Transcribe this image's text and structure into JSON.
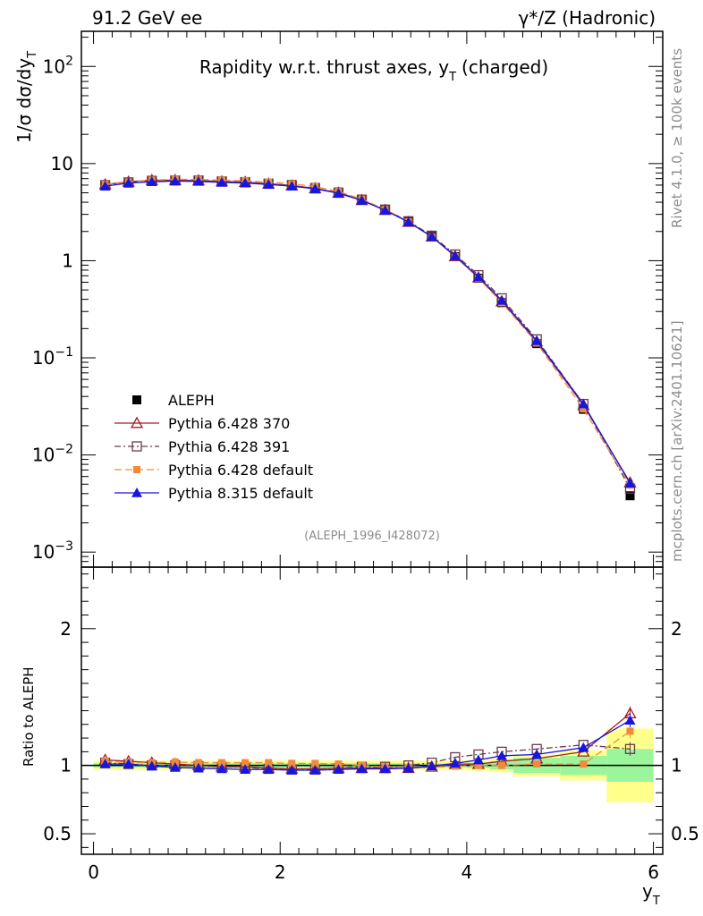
{
  "header": {
    "left": "91.2 GeV ee",
    "right": "γ*/Z (Hadronic)"
  },
  "side": {
    "rivet": "Rivet 4.1.0, ≥ 100k events",
    "mcplots": "mcplots.cern.ch [arXiv:2401.10621]"
  },
  "chart_data": {
    "type": "line",
    "title": "Rapidity w.r.t. thrust axes, y",
    "title_sub": "T",
    "title_suffix": "(charged)",
    "analysis_label": "(ALEPH_1996_I428072)",
    "ylabel_main": "1/σ  dσ/dy",
    "ylabel_main_sub": "T",
    "ylabel_ratio": "Ratio to ALEPH",
    "xlabel": "y",
    "xlabel_sub": "T",
    "xlim": [
      -0.13,
      6.1
    ],
    "ylim_main": [
      0.0007,
      230
    ],
    "ylim_ratio": [
      0.35,
      2.45
    ],
    "x_ticks": [
      0,
      2,
      4,
      6
    ],
    "x_tick_labels": [
      "0",
      "2",
      "4",
      "6"
    ],
    "y_ticks_main": [
      {
        "base": "10",
        "exp": "−3",
        "value": 0.001
      },
      {
        "base": "10",
        "exp": "−2",
        "value": 0.01
      },
      {
        "base": "10",
        "exp": "−1",
        "value": 0.1
      },
      {
        "base": "1",
        "exp": "",
        "value": 1
      },
      {
        "base": "10",
        "exp": "",
        "value": 10
      },
      {
        "base": "10",
        "exp": "2",
        "value": 100
      }
    ],
    "y_ticks_ratio": [
      {
        "label": "0.5",
        "value": 0.5
      },
      {
        "label": "1",
        "value": 1
      },
      {
        "label": "2",
        "value": 2
      }
    ],
    "x": [
      0.125,
      0.375,
      0.625,
      0.875,
      1.125,
      1.375,
      1.625,
      1.875,
      2.125,
      2.375,
      2.625,
      2.875,
      3.125,
      3.375,
      3.625,
      3.875,
      4.125,
      4.375,
      4.75,
      5.25,
      5.75
    ],
    "data_band_edges": [
      0,
      0.25,
      0.5,
      0.75,
      1.0,
      1.25,
      1.5,
      1.75,
      2.0,
      2.25,
      2.5,
      2.75,
      3.0,
      3.25,
      3.5,
      3.75,
      4.0,
      4.25,
      4.5,
      5.0,
      5.5,
      6.0
    ],
    "band_green": [
      0.015,
      0.015,
      0.015,
      0.015,
      0.015,
      0.015,
      0.015,
      0.015,
      0.015,
      0.015,
      0.015,
      0.015,
      0.015,
      0.015,
      0.015,
      0.015,
      0.02,
      0.03,
      0.055,
      0.07,
      0.12
    ],
    "band_yellow": [
      0.035,
      0.035,
      0.035,
      0.035,
      0.035,
      0.035,
      0.035,
      0.035,
      0.035,
      0.035,
      0.035,
      0.035,
      0.035,
      0.035,
      0.035,
      0.035,
      0.04,
      0.05,
      0.08,
      0.11,
      0.27
    ],
    "series": [
      {
        "name": "ALEPH",
        "marker": "square-filled",
        "color": "#000000",
        "values": [
          5.9,
          6.3,
          6.6,
          6.7,
          6.7,
          6.6,
          6.5,
          6.3,
          6.1,
          5.7,
          5.1,
          4.3,
          3.4,
          2.55,
          1.78,
          1.1,
          0.66,
          0.37,
          0.14,
          0.0295,
          0.0038
        ],
        "ratio": [
          1,
          1,
          1,
          1,
          1,
          1,
          1,
          1,
          1,
          1,
          1,
          1,
          1,
          1,
          1,
          1,
          1,
          1,
          1,
          1,
          1
        ]
      },
      {
        "name": "Pythia 6.428 370",
        "marker": "triangle-open",
        "color": "#a01d26",
        "dash": "",
        "values": [
          6.1,
          6.5,
          6.75,
          6.75,
          6.7,
          6.55,
          6.45,
          6.2,
          5.95,
          5.55,
          5.0,
          4.2,
          3.32,
          2.5,
          1.77,
          1.11,
          0.67,
          0.38,
          0.147,
          0.0325,
          0.0052
        ],
        "ratio": [
          1.04,
          1.03,
          1.02,
          1.01,
          1.0,
          0.99,
          0.99,
          0.98,
          0.975,
          0.975,
          0.98,
          0.98,
          0.98,
          0.98,
          0.99,
          1.01,
          1.01,
          1.03,
          1.05,
          1.1,
          1.38
        ]
      },
      {
        "name": "Pythia 6.428 391",
        "marker": "square-open",
        "color": "#6b3a4d",
        "dash": "7,3,2,3",
        "values": [
          6.0,
          6.4,
          6.65,
          6.7,
          6.7,
          6.55,
          6.45,
          6.2,
          5.95,
          5.55,
          5.0,
          4.25,
          3.35,
          2.55,
          1.81,
          1.16,
          0.71,
          0.41,
          0.155,
          0.0335,
          0.0045
        ],
        "ratio": [
          1.02,
          1.01,
          1.0,
          1.0,
          0.995,
          0.99,
          0.985,
          0.975,
          0.97,
          0.97,
          0.98,
          0.99,
          0.99,
          1.0,
          1.02,
          1.06,
          1.08,
          1.1,
          1.12,
          1.15,
          1.12
        ]
      },
      {
        "name": "Pythia 6.428 default",
        "marker": "square-filled-small",
        "color": "#f28a3c",
        "dash": "8,4",
        "values": [
          6.1,
          6.45,
          6.75,
          6.9,
          6.85,
          6.75,
          6.65,
          6.45,
          6.2,
          5.8,
          5.15,
          4.3,
          3.37,
          2.53,
          1.76,
          1.1,
          0.66,
          0.37,
          0.142,
          0.0298,
          0.0049
        ],
        "ratio": [
          1.03,
          1.02,
          1.02,
          1.025,
          1.02,
          1.02,
          1.02,
          1.02,
          1.015,
          1.015,
          1.01,
          1.0,
          0.99,
          0.985,
          0.985,
          0.995,
          1.0,
          1.0,
          1.01,
          1.01,
          1.25
        ]
      },
      {
        "name": "Pythia 8.315 default",
        "marker": "triangle-filled",
        "color": "#1616e0",
        "dash": "",
        "values": [
          5.85,
          6.3,
          6.5,
          6.6,
          6.55,
          6.4,
          6.3,
          6.1,
          5.85,
          5.5,
          4.95,
          4.18,
          3.3,
          2.5,
          1.77,
          1.12,
          0.68,
          0.39,
          0.15,
          0.0335,
          0.0051
        ],
        "ratio": [
          1.01,
          1.01,
          0.995,
          0.985,
          0.98,
          0.975,
          0.97,
          0.97,
          0.965,
          0.965,
          0.97,
          0.975,
          0.975,
          0.98,
          0.995,
          1.015,
          1.04,
          1.07,
          1.08,
          1.13,
          1.33
        ]
      }
    ],
    "ratio_err_last": 0.05
  }
}
